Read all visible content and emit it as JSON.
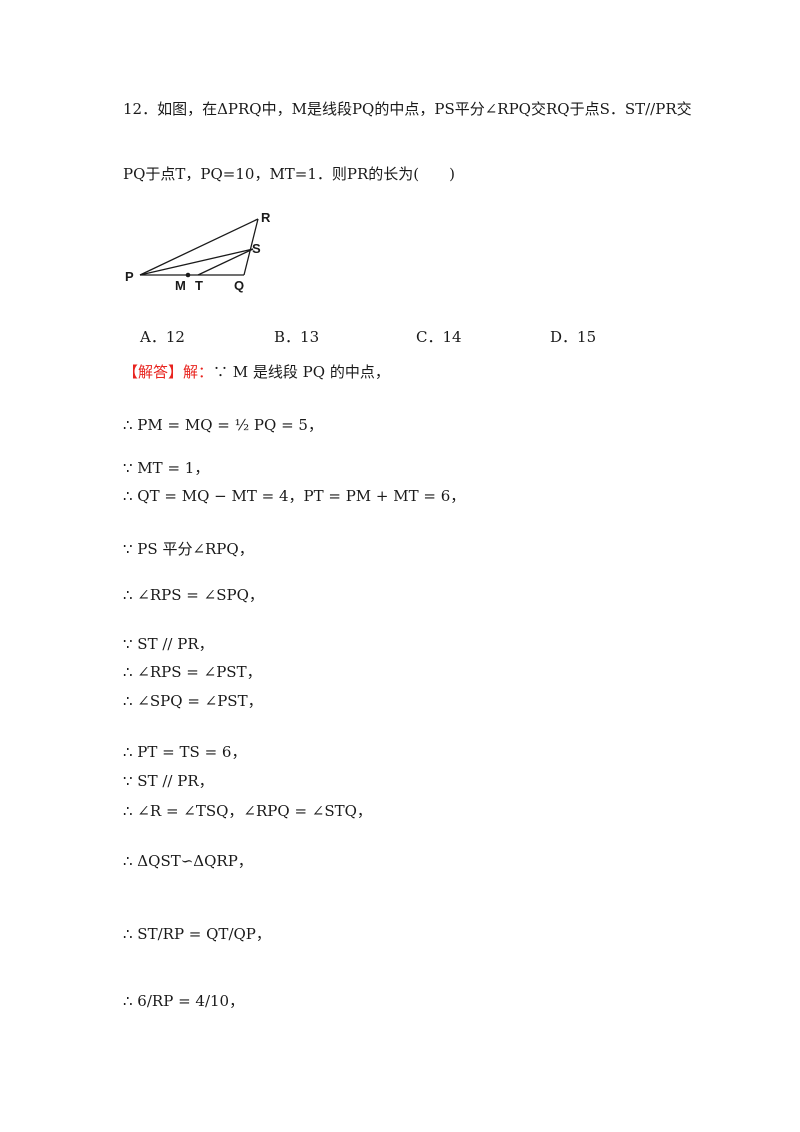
{
  "question": {
    "line1": "12．如图，在ΔPRQ中，M是线段PQ的中点，PS平分∠RPQ交RQ于点S．ST//PR交",
    "line2": "PQ于点T，PQ=10，MT=1．则PR的长为(　　)"
  },
  "figure": {
    "labels": [
      "R",
      "S",
      "P",
      "M",
      "T",
      "Q"
    ]
  },
  "options": [
    "A．12",
    "B．13",
    "C．14",
    "D．15"
  ],
  "solution": {
    "header": "【解答】解：",
    "intro": "∵ M 是线段 PQ 的中点，",
    "steps": [
      "∴ PM = MQ = ½ PQ = 5，",
      "∵ MT = 1，",
      "∴ QT = MQ − MT = 4，PT = PM + MT = 6，",
      "∵ PS 平分∠RPQ，",
      "∴ ∠RPS = ∠SPQ，",
      "∵ ST // PR，",
      "∴ ∠RPS = ∠PST，",
      "∴ ∠SPQ = ∠PST，",
      "∴ PT = TS = 6，",
      "∵ ST // PR，",
      "∴ ∠R = ∠TSQ，∠RPQ = ∠STQ，",
      "∴ ΔQST∽ΔQRP，",
      "∴ ST/RP = QT/QP，",
      "∴ 6/RP = 4/10，"
    ]
  }
}
